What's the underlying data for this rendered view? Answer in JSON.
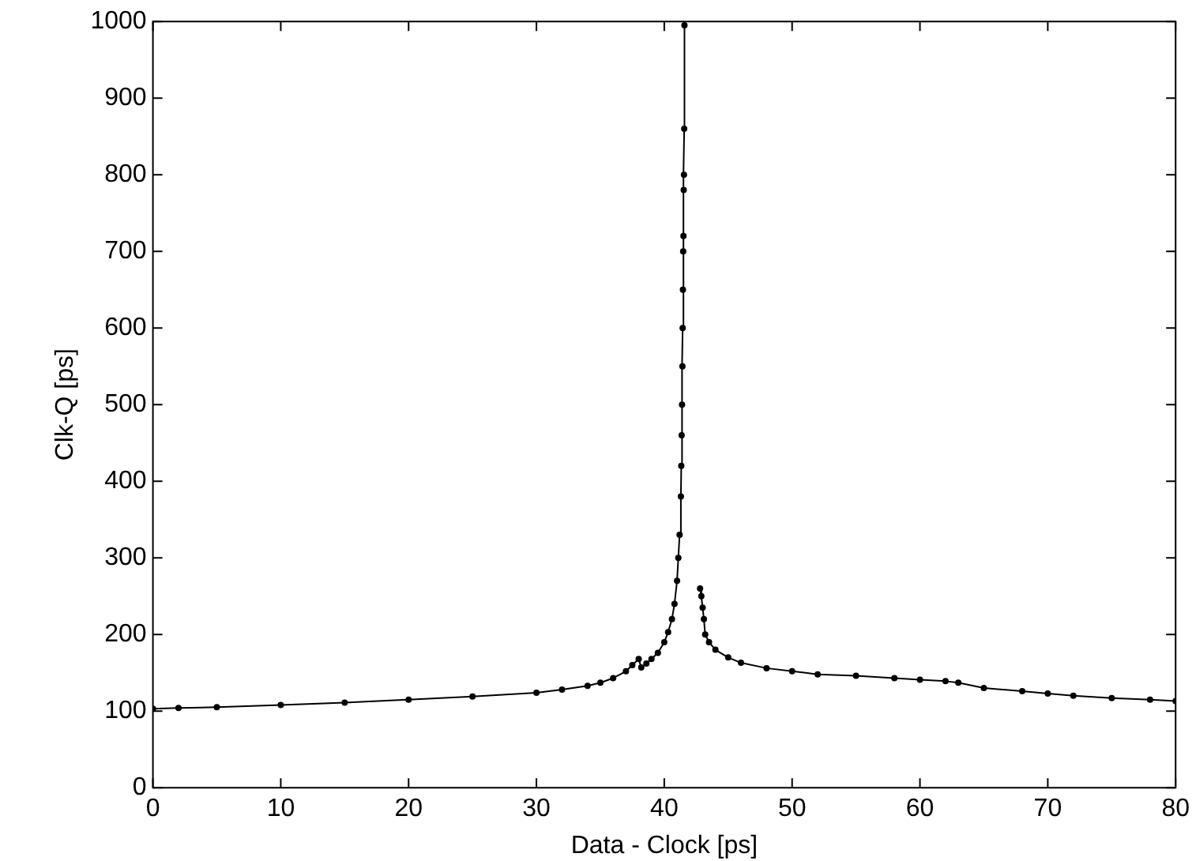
{
  "chart_data": {
    "type": "line",
    "xlabel": "Data - Clock [ps]",
    "ylabel": "Clk-Q [ps]",
    "series": [
      {
        "color": "#000000",
        "x": [
          0,
          2,
          5,
          10,
          15,
          20,
          25,
          30,
          32,
          34,
          35,
          36,
          37,
          37.5,
          38,
          38.2,
          38.6,
          39,
          39.5,
          40,
          40.3,
          40.6,
          40.8,
          41,
          41.1,
          41.2,
          41.3,
          41.33,
          41.36,
          41.39,
          41.42,
          41.44,
          41.46,
          41.48,
          41.5,
          41.52,
          41.54,
          41.56,
          41.58
        ],
        "values": [
          103,
          104,
          105,
          108,
          111,
          115,
          119,
          124,
          128,
          133,
          137,
          143,
          152,
          160,
          168,
          157,
          162,
          168,
          176,
          190,
          203,
          220,
          240,
          270,
          300,
          330,
          380,
          420,
          460,
          500,
          550,
          600,
          650,
          700,
          720,
          780,
          800,
          860,
          995
        ]
      },
      {
        "color": "#000000",
        "x": [
          42.8,
          42.9,
          43,
          43.1,
          43.2,
          43.5,
          44,
          45,
          46,
          48,
          50,
          52,
          55,
          58,
          60,
          62,
          63,
          65,
          68,
          70,
          72,
          75,
          78,
          80
        ],
        "values": [
          260,
          250,
          235,
          220,
          200,
          190,
          180,
          170,
          163,
          156,
          152,
          148,
          146,
          143,
          141,
          139,
          137,
          130,
          126,
          123,
          120,
          117,
          115,
          113
        ]
      }
    ],
    "xlim": [
      0,
      80
    ],
    "xticks": [
      0,
      10,
      20,
      30,
      40,
      50,
      60,
      70,
      80
    ],
    "ylim": [
      0,
      1000
    ],
    "yticks": [
      0,
      100,
      200,
      300,
      400,
      500,
      600,
      700,
      800,
      900,
      1000
    ],
    "grid": false,
    "legend": false,
    "marker": "circle",
    "line_style": "solid"
  }
}
